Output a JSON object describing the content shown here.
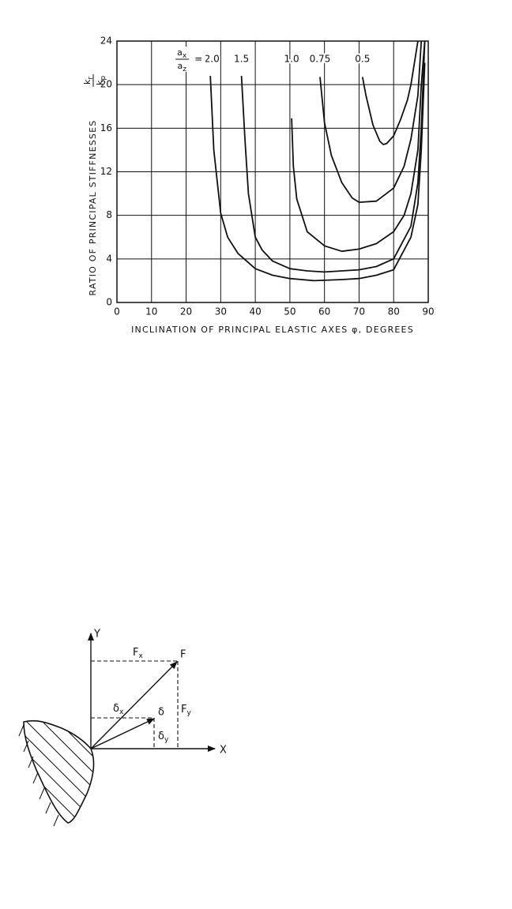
{
  "chart_data": {
    "type": "line",
    "xlabel": "INCLINATION OF PRINCIPAL ELASTIC AXES φ, DEGREES",
    "ylabel": "RATIO OF PRINCIPAL STIFFNESSES",
    "ylabel_fraction": {
      "num": "k",
      "num_sub": "r",
      "den": "k",
      "den_sub": "p"
    },
    "series_label_prefix": {
      "num": "a",
      "num_sub": "x",
      "den": "a",
      "den_sub": "z",
      "sign": "="
    },
    "color": "#111111",
    "grid": true,
    "xlim": [
      0,
      90
    ],
    "xticks": [
      0,
      10,
      20,
      30,
      40,
      50,
      60,
      70,
      80,
      90
    ],
    "ylim": [
      0,
      24
    ],
    "yticks": [
      0,
      4,
      8,
      12,
      16,
      20,
      24
    ],
    "series": [
      {
        "name": "2.0",
        "x": [
          27,
          28,
          30,
          32,
          35,
          40,
          45,
          50,
          57,
          65,
          70,
          75,
          80,
          85,
          87,
          88,
          89
        ],
        "values": [
          20.8,
          14,
          8.2,
          6,
          4.5,
          3.1,
          2.5,
          2.2,
          2,
          2.1,
          2.2,
          2.5,
          3,
          6,
          9,
          14,
          22
        ]
      },
      {
        "name": "1.5",
        "x": [
          36,
          37,
          38,
          40,
          42,
          45,
          50,
          55,
          60,
          70,
          75,
          80,
          85,
          87,
          88,
          89
        ],
        "values": [
          20.8,
          15,
          10,
          6,
          4.8,
          3.8,
          3.1,
          2.9,
          2.8,
          3,
          3.3,
          4,
          7,
          11,
          16,
          24
        ]
      },
      {
        "name": "1.0",
        "x": [
          50.5,
          51,
          52,
          55,
          60,
          65,
          70,
          75,
          80,
          83,
          85,
          87,
          88,
          89
        ],
        "values": [
          16.9,
          12.5,
          9.5,
          6.5,
          5.2,
          4.7,
          4.9,
          5.4,
          6.5,
          8,
          10,
          14,
          20,
          24
        ]
      },
      {
        "name": "0.75",
        "x": [
          58.7,
          60,
          62,
          65,
          68,
          70,
          75,
          80,
          83,
          85,
          87,
          88
        ],
        "values": [
          20.7,
          16.5,
          13.5,
          11,
          9.6,
          9.2,
          9.3,
          10.5,
          12.5,
          15,
          19,
          24
        ]
      },
      {
        "name": "0.5",
        "x": [
          71,
          72,
          74,
          76,
          77,
          78,
          80,
          82,
          84,
          85,
          86,
          87
        ],
        "values": [
          20.7,
          19,
          16.3,
          14.8,
          14.5,
          14.6,
          15.3,
          16.8,
          18.6,
          20,
          22,
          24
        ]
      }
    ]
  },
  "diagram": {
    "axis_y": "Y",
    "axis_x": "X",
    "force": "F",
    "force_x": {
      "text": "F",
      "sub": "x"
    },
    "force_y": {
      "text": "F",
      "sub": "y"
    },
    "deflection": "δ",
    "deflection_x": {
      "text": "δ",
      "sub": "x"
    },
    "deflection_y": {
      "text": "δ",
      "sub": "y"
    }
  }
}
